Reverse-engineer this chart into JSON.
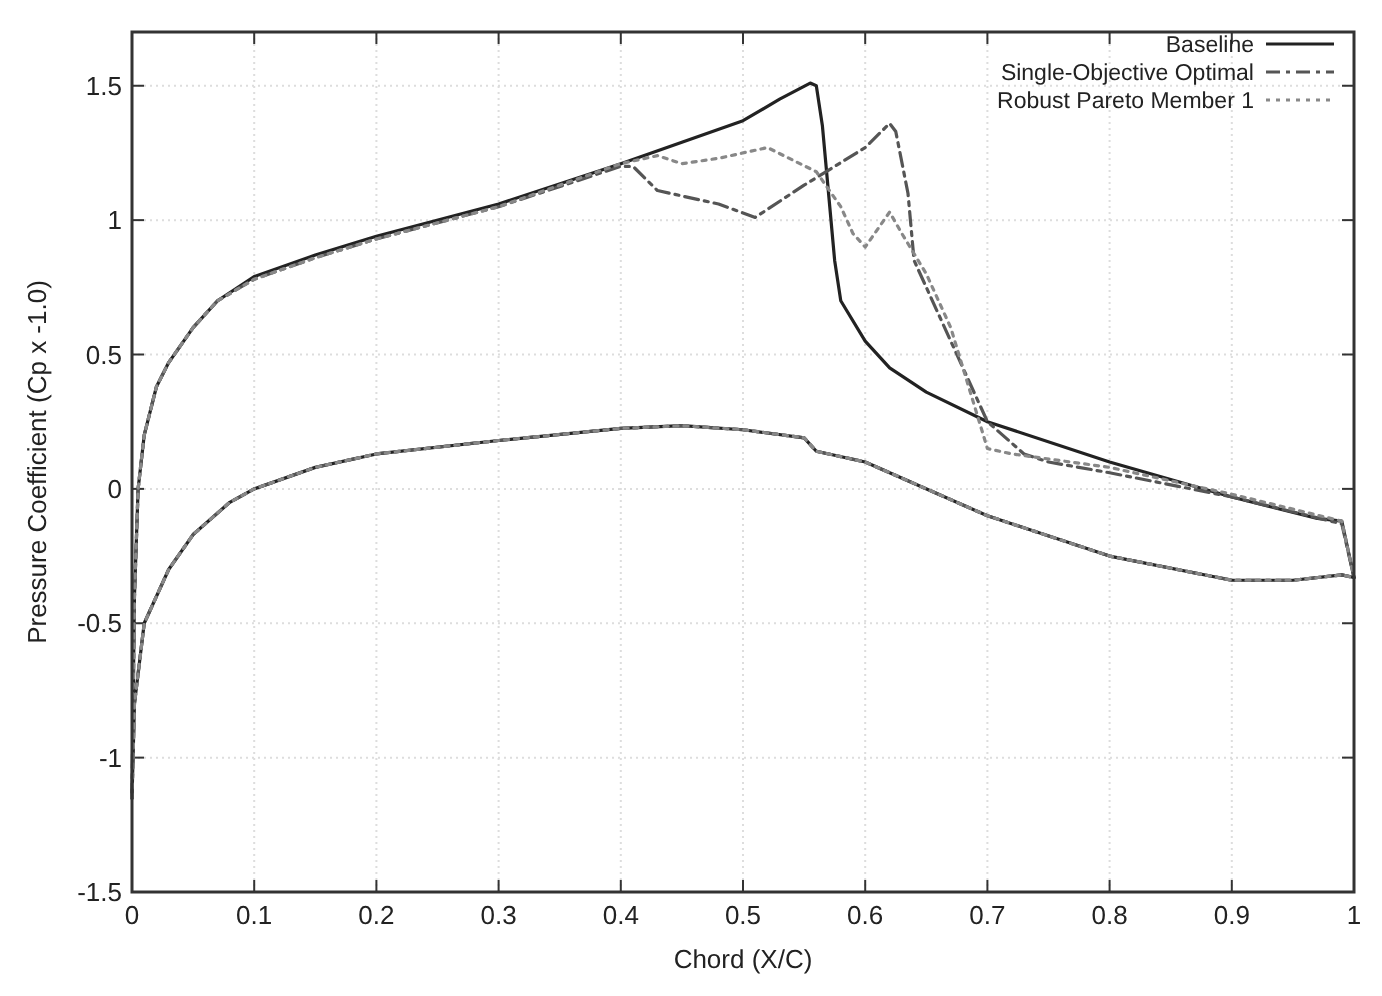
{
  "chart_data": {
    "type": "line",
    "xlabel": "Chord (X/C)",
    "ylabel": "Pressure Coefficient (Cp x -1.0)",
    "xlim": [
      0,
      1
    ],
    "ylim": [
      -1.5,
      1.7
    ],
    "xticks": [
      0,
      0.1,
      0.2,
      0.3,
      0.4,
      0.5,
      0.6,
      0.7,
      0.8,
      0.9,
      1
    ],
    "yticks": [
      -1.5,
      -1,
      -0.5,
      0,
      0.5,
      1,
      1.5
    ],
    "grid": true,
    "legend": "top right",
    "series": [
      {
        "name": "Baseline",
        "color": "#222222",
        "line_style": "solid",
        "x": [
          0,
          0.002,
          0.005,
          0.01,
          0.02,
          0.03,
          0.05,
          0.07,
          0.1,
          0.15,
          0.2,
          0.3,
          0.4,
          0.45,
          0.5,
          0.53,
          0.555,
          0.56,
          0.565,
          0.57,
          0.575,
          0.58,
          0.6,
          0.62,
          0.65,
          0.7,
          0.8,
          0.9,
          0.97,
          0.99,
          1
        ],
        "values": [
          -1.15,
          -0.4,
          0,
          0.2,
          0.38,
          0.47,
          0.6,
          0.7,
          0.79,
          0.87,
          0.94,
          1.06,
          1.21,
          1.29,
          1.37,
          1.45,
          1.51,
          1.5,
          1.35,
          1.1,
          0.85,
          0.7,
          0.55,
          0.45,
          0.36,
          0.25,
          0.1,
          -0.03,
          -0.11,
          -0.12,
          -0.33
        ]
      },
      {
        "name": "Single-Objective Optimal",
        "color": "#555555",
        "line_style": "dashdot",
        "x": [
          0,
          0.002,
          0.005,
          0.01,
          0.02,
          0.03,
          0.05,
          0.07,
          0.1,
          0.15,
          0.2,
          0.3,
          0.4,
          0.41,
          0.43,
          0.48,
          0.51,
          0.55,
          0.6,
          0.62,
          0.625,
          0.635,
          0.64,
          0.65,
          0.68,
          0.7,
          0.73,
          0.75,
          0.8,
          0.9,
          0.99,
          1
        ],
        "values": [
          -1.15,
          -0.4,
          0,
          0.2,
          0.38,
          0.47,
          0.6,
          0.7,
          0.78,
          0.86,
          0.93,
          1.05,
          1.2,
          1.2,
          1.11,
          1.06,
          1.01,
          1.13,
          1.27,
          1.36,
          1.33,
          1.1,
          0.85,
          0.75,
          0.45,
          0.25,
          0.13,
          0.1,
          0.06,
          -0.03,
          -0.13,
          -0.33
        ]
      },
      {
        "name": "Robust Pareto Member 1",
        "color": "#888888",
        "line_style": "dotted",
        "x": [
          0,
          0.002,
          0.005,
          0.01,
          0.02,
          0.03,
          0.05,
          0.07,
          0.1,
          0.15,
          0.2,
          0.3,
          0.4,
          0.43,
          0.45,
          0.48,
          0.52,
          0.56,
          0.58,
          0.59,
          0.6,
          0.62,
          0.63,
          0.65,
          0.67,
          0.69,
          0.7,
          0.72,
          0.8,
          0.9,
          0.99,
          1
        ],
        "values": [
          -1.15,
          -0.4,
          0,
          0.2,
          0.38,
          0.47,
          0.6,
          0.7,
          0.78,
          0.86,
          0.93,
          1.05,
          1.21,
          1.24,
          1.21,
          1.23,
          1.27,
          1.18,
          1.05,
          0.95,
          0.9,
          1.03,
          0.95,
          0.8,
          0.6,
          0.3,
          0.15,
          0.13,
          0.08,
          -0.02,
          -0.12,
          -0.33
        ]
      },
      {
        "color": "#222222",
        "line_style": "solid",
        "x": [
          0,
          0.002,
          0.01,
          0.03,
          0.05,
          0.08,
          0.1,
          0.15,
          0.2,
          0.3,
          0.4,
          0.45,
          0.5,
          0.55,
          0.56,
          0.6,
          0.7,
          0.8,
          0.9,
          0.95,
          0.99,
          1
        ],
        "values": [
          -1.15,
          -0.8,
          -0.5,
          -0.3,
          -0.17,
          -0.05,
          0,
          0.08,
          0.13,
          0.18,
          0.225,
          0.235,
          0.22,
          0.19,
          0.14,
          0.1,
          -0.1,
          -0.25,
          -0.34,
          -0.34,
          -0.32,
          -0.33
        ]
      },
      {
        "color": "#555555",
        "line_style": "dashdot",
        "x": [
          0,
          0.002,
          0.01,
          0.03,
          0.05,
          0.08,
          0.1,
          0.15,
          0.2,
          0.3,
          0.4,
          0.45,
          0.5,
          0.55,
          0.56,
          0.6,
          0.7,
          0.8,
          0.9,
          0.95,
          0.99,
          1
        ],
        "values": [
          -1.15,
          -0.8,
          -0.5,
          -0.3,
          -0.17,
          -0.05,
          0,
          0.08,
          0.13,
          0.18,
          0.225,
          0.235,
          0.22,
          0.19,
          0.14,
          0.1,
          -0.1,
          -0.25,
          -0.34,
          -0.34,
          -0.32,
          -0.33
        ]
      },
      {
        "color": "#888888",
        "line_style": "dotted",
        "x": [
          0,
          0.002,
          0.01,
          0.03,
          0.05,
          0.08,
          0.1,
          0.15,
          0.2,
          0.3,
          0.4,
          0.45,
          0.5,
          0.55,
          0.56,
          0.6,
          0.7,
          0.8,
          0.9,
          0.95,
          0.99,
          1
        ],
        "values": [
          -1.15,
          -0.8,
          -0.5,
          -0.3,
          -0.17,
          -0.05,
          0,
          0.08,
          0.13,
          0.18,
          0.225,
          0.235,
          0.22,
          0.19,
          0.14,
          0.1,
          -0.1,
          -0.25,
          -0.34,
          -0.34,
          -0.32,
          -0.33
        ]
      }
    ]
  }
}
